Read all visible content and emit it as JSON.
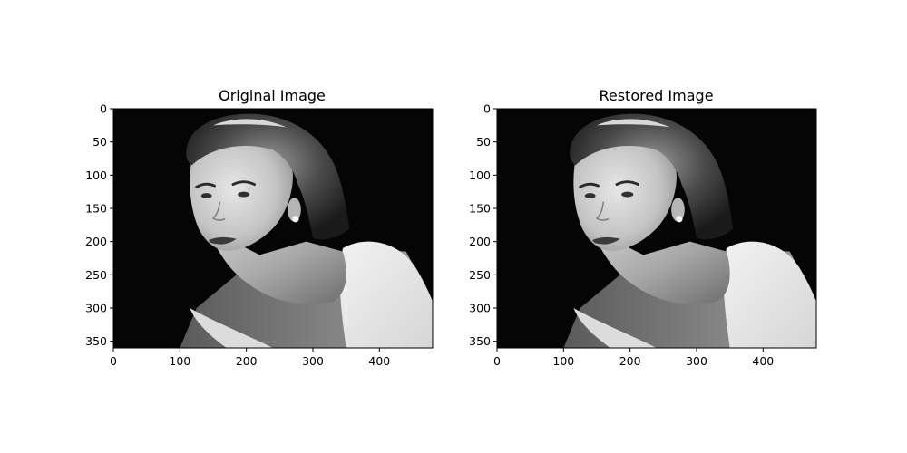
{
  "chart_data": [
    {
      "type": "image",
      "title": "Original Image",
      "image_width": 480,
      "image_height": 360,
      "x_ticks": [
        0,
        100,
        200,
        300,
        400
      ],
      "y_ticks": [
        0,
        50,
        100,
        150,
        200,
        250,
        300,
        350
      ],
      "xlim": [
        0,
        480
      ],
      "ylim": [
        360,
        0
      ],
      "colormap": "gray",
      "grid": false
    },
    {
      "type": "image",
      "title": "Restored Image",
      "image_width": 480,
      "image_height": 360,
      "x_ticks": [
        0,
        100,
        200,
        300,
        400
      ],
      "y_ticks": [
        0,
        50,
        100,
        150,
        200,
        250,
        300,
        350
      ],
      "xlim": [
        0,
        480
      ],
      "ylim": [
        360,
        0
      ],
      "colormap": "gray",
      "grid": false
    }
  ],
  "colors": {
    "background": "#ffffff",
    "image_background": "#050505",
    "axis": "#000000"
  }
}
